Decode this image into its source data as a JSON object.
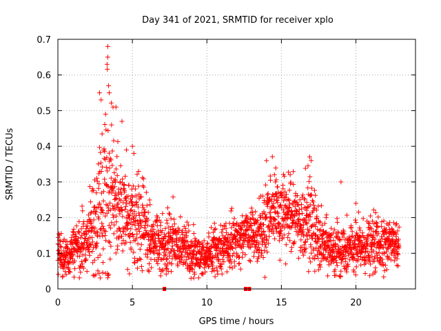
{
  "chart_data": {
    "type": "scatter",
    "title": "Day 341 of 2021, SRMTID for receiver xplo",
    "xlabel": "GPS time / hours",
    "ylabel": "SRMTID / TECUs",
    "xlim": [
      0,
      24
    ],
    "ylim": [
      0,
      0.7
    ],
    "xticks": [
      0,
      5,
      10,
      15,
      20
    ],
    "xtick_labels": [
      "0",
      "5",
      "10",
      "15",
      "20"
    ],
    "yticks": [
      0,
      0.1,
      0.2,
      0.3,
      0.4,
      0.5,
      0.6,
      0.7
    ],
    "ytick_labels": [
      "0",
      "0.1",
      "0.2",
      "0.3",
      "0.4",
      "0.5",
      "0.6",
      "0.7"
    ],
    "grid": true,
    "marker": "+",
    "color": "#ff0000",
    "envelope": {
      "hours": [
        0.0,
        0.5,
        1.0,
        1.5,
        2.0,
        2.5,
        3.0,
        3.3,
        3.6,
        4.0,
        4.5,
        5.0,
        5.5,
        6.0,
        6.5,
        7.0,
        7.5,
        8.0,
        8.5,
        9.0,
        9.5,
        10.0,
        10.5,
        11.0,
        11.5,
        12.0,
        12.5,
        13.0,
        13.5,
        14.0,
        14.5,
        15.0,
        15.5,
        16.0,
        16.5,
        17.0,
        17.5,
        18.0,
        18.5,
        19.0,
        19.5,
        20.0,
        20.5,
        21.0,
        21.5,
        22.0,
        22.5,
        23.0
      ],
      "median": [
        0.1,
        0.09,
        0.1,
        0.12,
        0.15,
        0.18,
        0.24,
        0.28,
        0.27,
        0.25,
        0.21,
        0.18,
        0.19,
        0.17,
        0.13,
        0.12,
        0.13,
        0.13,
        0.12,
        0.1,
        0.09,
        0.09,
        0.1,
        0.12,
        0.13,
        0.14,
        0.15,
        0.16,
        0.17,
        0.19,
        0.22,
        0.21,
        0.2,
        0.2,
        0.17,
        0.19,
        0.13,
        0.12,
        0.11,
        0.1,
        0.11,
        0.11,
        0.12,
        0.12,
        0.13,
        0.13,
        0.13,
        0.12
      ],
      "spread": [
        0.04,
        0.04,
        0.04,
        0.05,
        0.06,
        0.09,
        0.12,
        0.16,
        0.11,
        0.08,
        0.07,
        0.07,
        0.07,
        0.06,
        0.04,
        0.05,
        0.05,
        0.04,
        0.04,
        0.04,
        0.03,
        0.03,
        0.04,
        0.04,
        0.04,
        0.04,
        0.04,
        0.04,
        0.05,
        0.07,
        0.07,
        0.06,
        0.06,
        0.05,
        0.06,
        0.08,
        0.05,
        0.04,
        0.04,
        0.04,
        0.04,
        0.05,
        0.04,
        0.04,
        0.05,
        0.05,
        0.04,
        0.04
      ]
    },
    "n_points": 2300,
    "outliers": [
      {
        "x": 3.35,
        "y": 0.68
      },
      {
        "x": 3.35,
        "y": 0.65
      },
      {
        "x": 3.3,
        "y": 0.63
      },
      {
        "x": 2.8,
        "y": 0.55
      },
      {
        "x": 2.9,
        "y": 0.53
      },
      {
        "x": 3.4,
        "y": 0.57
      },
      {
        "x": 3.45,
        "y": 0.55
      },
      {
        "x": 3.7,
        "y": 0.51
      },
      {
        "x": 3.9,
        "y": 0.51
      },
      {
        "x": 3.2,
        "y": 0.49
      },
      {
        "x": 4.3,
        "y": 0.47
      },
      {
        "x": 3.6,
        "y": 0.46
      },
      {
        "x": 5.0,
        "y": 0.4
      },
      {
        "x": 5.1,
        "y": 0.38
      },
      {
        "x": 4.6,
        "y": 0.39
      },
      {
        "x": 16.9,
        "y": 0.37
      },
      {
        "x": 17.0,
        "y": 0.36
      },
      {
        "x": 14.0,
        "y": 0.36
      },
      {
        "x": 19.0,
        "y": 0.3
      },
      {
        "x": 20.0,
        "y": 0.24
      },
      {
        "x": 14.6,
        "y": 0.3
      }
    ],
    "zero_points": [
      {
        "x": 7.15,
        "y": 0.0
      },
      {
        "x": 12.6,
        "y": 0.0
      },
      {
        "x": 12.85,
        "y": 0.0
      }
    ]
  }
}
